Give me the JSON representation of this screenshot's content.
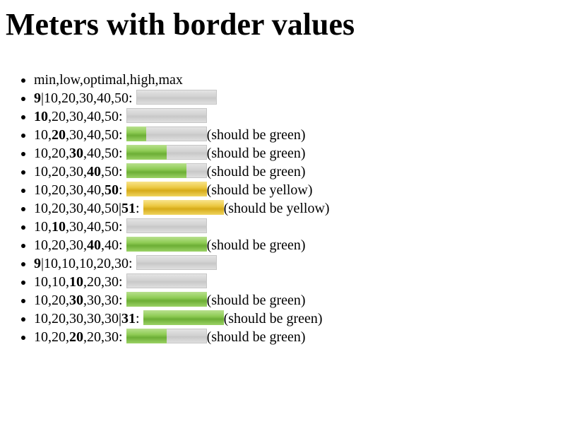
{
  "page_title": "Meters with border values",
  "colors": {
    "track": "#d2d2d2",
    "green": "#8fcc55",
    "yellow": "#ecc841"
  },
  "items": [
    {
      "pre": "",
      "bold": "",
      "post": "min,low,optimal,high,max",
      "value": null,
      "fill": 0,
      "color": "",
      "note": ""
    },
    {
      "pre": "",
      "bold": "9",
      "post": "|10,20,30,40,50:",
      "value": 9,
      "fill": 0,
      "color": "green",
      "note": ""
    },
    {
      "pre": "",
      "bold": "10",
      "post": ",20,30,40,50:",
      "value": 10,
      "fill": 0,
      "color": "green",
      "note": ""
    },
    {
      "pre": "10,",
      "bold": "20",
      "post": ",30,40,50:",
      "value": 20,
      "fill": 0.25,
      "color": "green",
      "note": "(should be green)"
    },
    {
      "pre": "10,20,",
      "bold": "30",
      "post": ",40,50:",
      "value": 30,
      "fill": 0.5,
      "color": "green",
      "note": "(should be green)"
    },
    {
      "pre": "10,20,30,",
      "bold": "40",
      "post": ",50:",
      "value": 40,
      "fill": 0.75,
      "color": "green",
      "note": "(should be green)"
    },
    {
      "pre": "10,20,30,40,",
      "bold": "50",
      "post": ":",
      "value": 50,
      "fill": 1,
      "color": "yellow",
      "note": "(should be yellow)"
    },
    {
      "pre": "10,20,30,40,50|",
      "bold": "51",
      "post": ":",
      "value": 51,
      "fill": 1,
      "color": "yellow",
      "note": "(should be yellow)"
    },
    {
      "pre": "10,",
      "bold": "10",
      "post": ",30,40,50:",
      "value": 10,
      "fill": 0,
      "color": "green",
      "note": ""
    },
    {
      "pre": "10,20,30,",
      "bold": "40",
      "post": ",40:",
      "value": 40,
      "fill": 1,
      "color": "green",
      "note": "(should be green)"
    },
    {
      "pre": "",
      "bold": "9",
      "post": "|10,10,10,20,30:",
      "value": 9,
      "fill": 0,
      "color": "green",
      "note": ""
    },
    {
      "pre": "10,10,",
      "bold": "10",
      "post": ",20,30:",
      "value": 10,
      "fill": 0,
      "color": "green",
      "note": ""
    },
    {
      "pre": "10,20,",
      "bold": "30",
      "post": ",30,30:",
      "value": 30,
      "fill": 1,
      "color": "green",
      "note": "(should be green)"
    },
    {
      "pre": "10,20,30,30,30|",
      "bold": "31",
      "post": ":",
      "value": 31,
      "fill": 1,
      "color": "green",
      "note": "(should be green)"
    },
    {
      "pre": "10,20,",
      "bold": "20",
      "post": ",20,30:",
      "value": 20,
      "fill": 0.5,
      "color": "green",
      "note": "(should be green)"
    }
  ]
}
